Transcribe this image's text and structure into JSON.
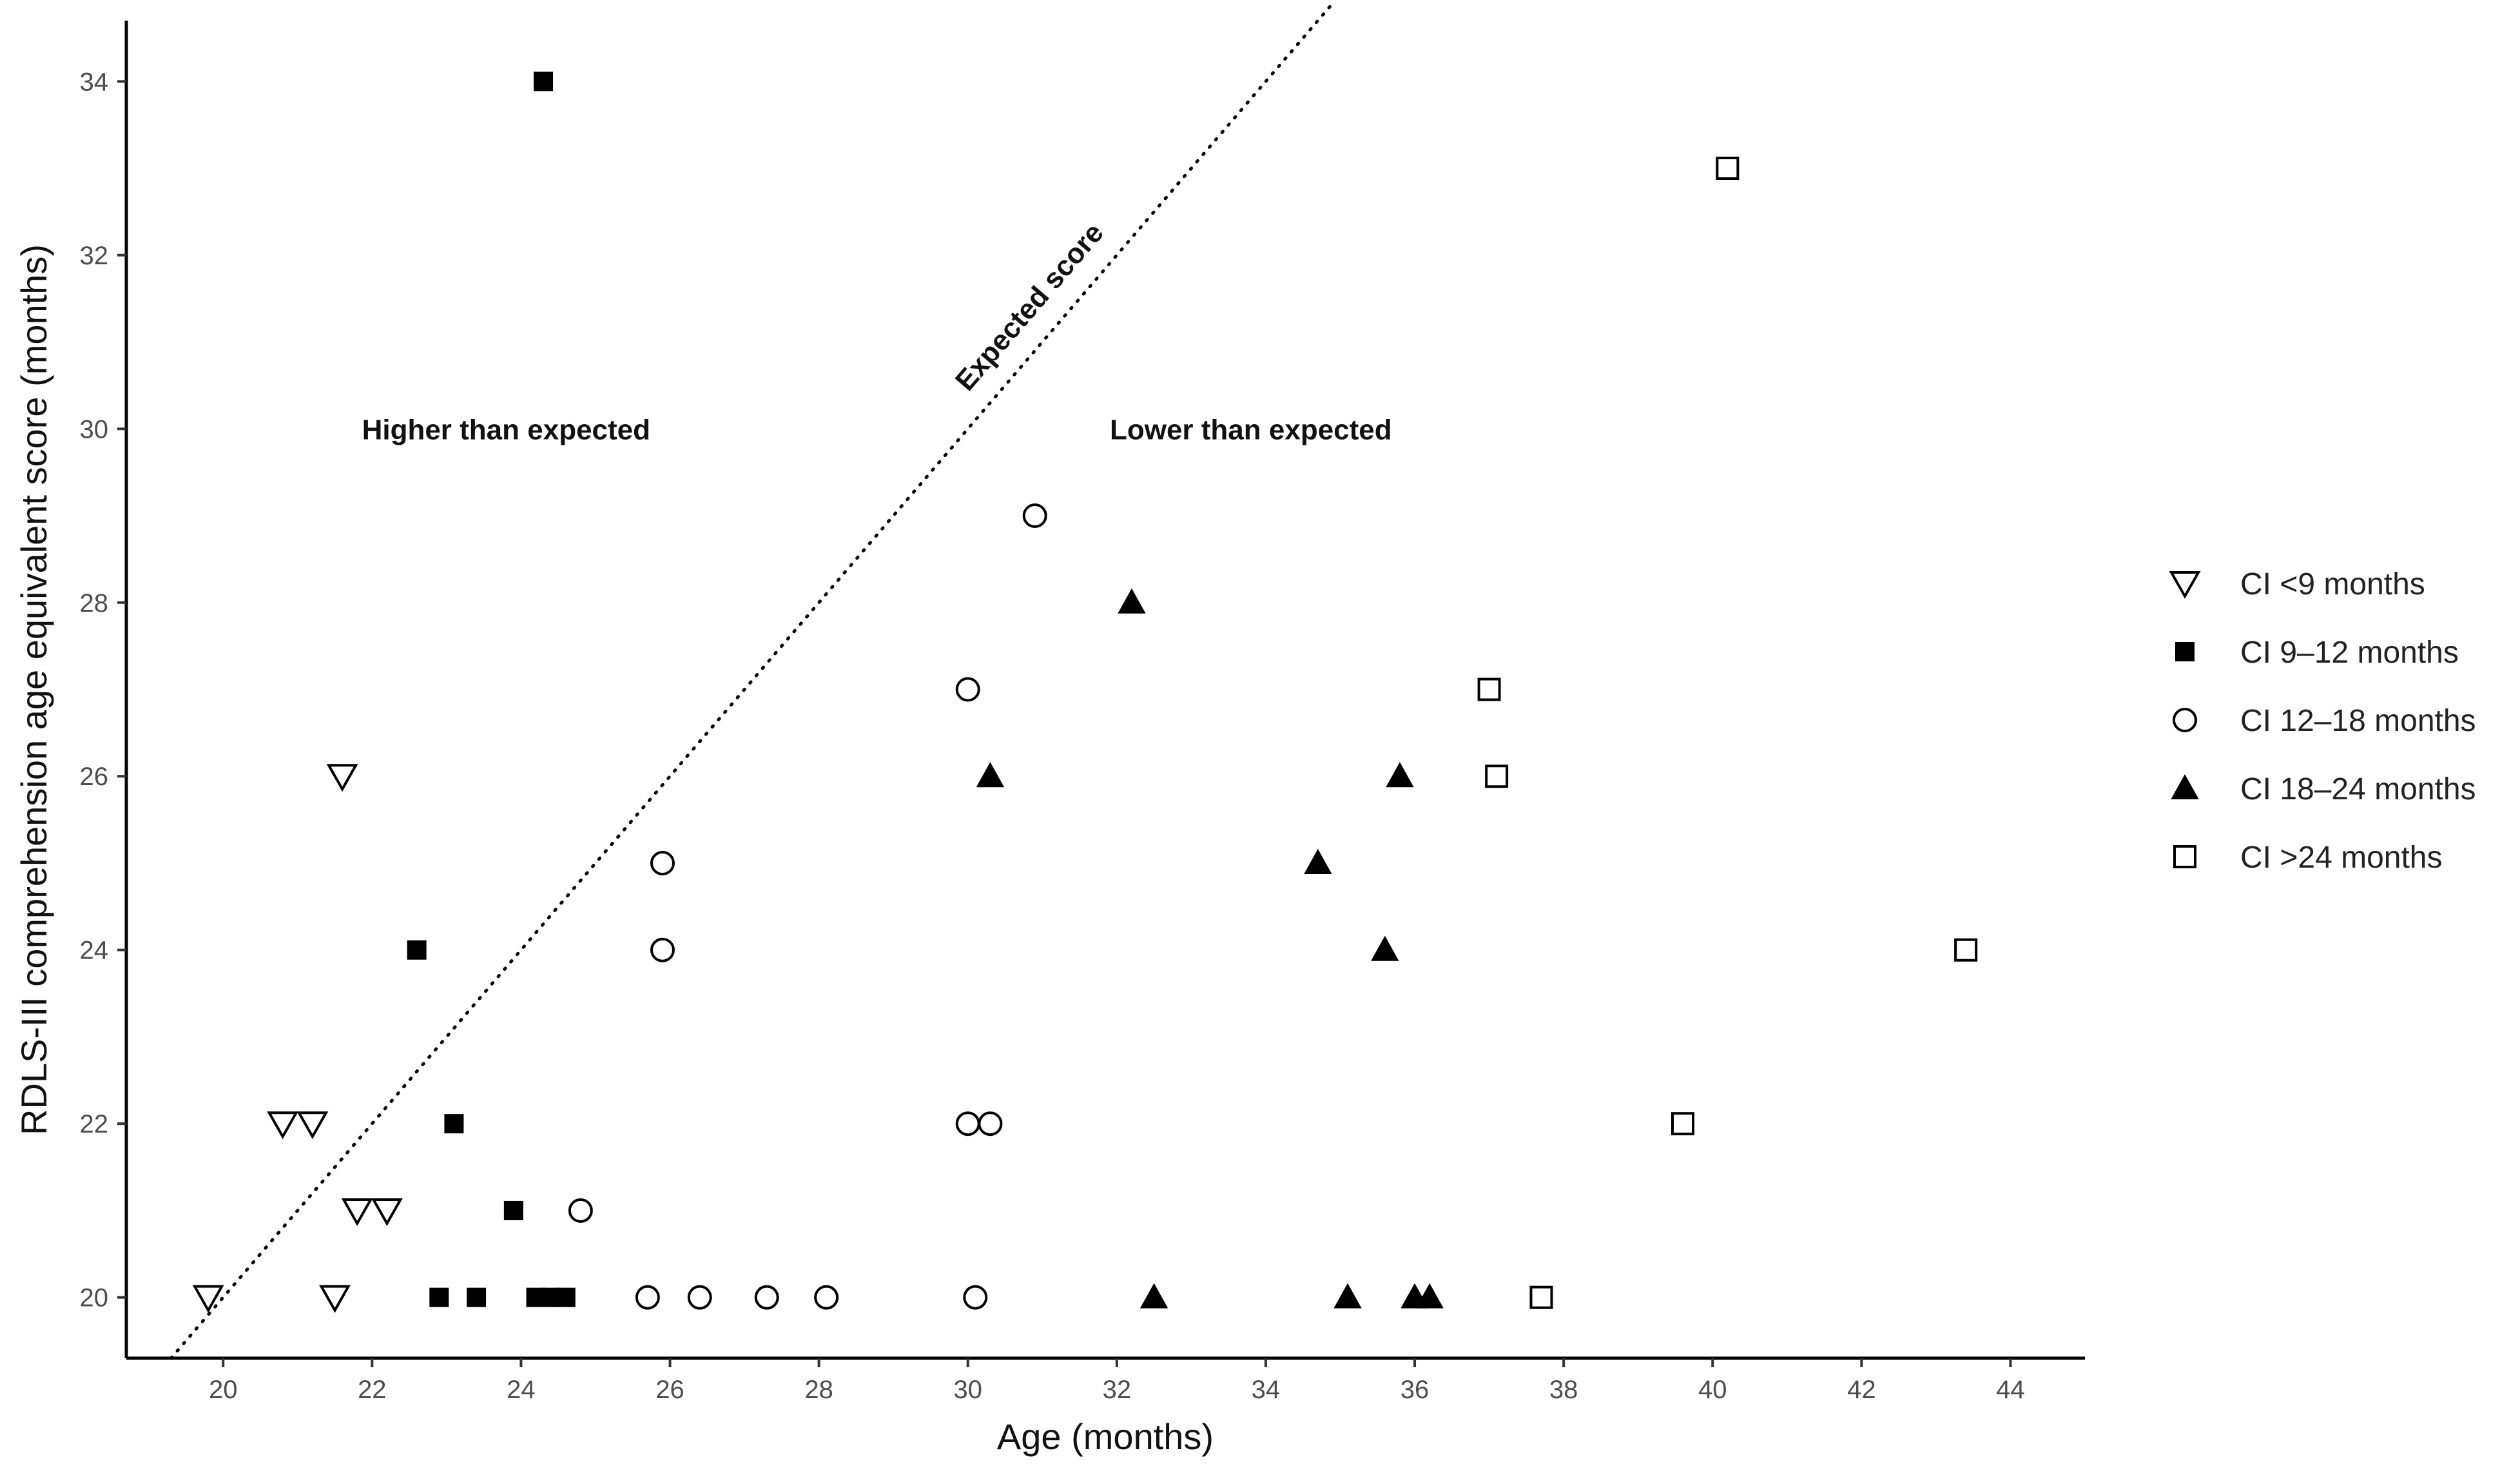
{
  "chart_data": {
    "type": "scatter",
    "title": "",
    "xlabel": "Age (months)",
    "ylabel": "RDLS-III comprehension age equivalent score (months)",
    "xlim": [
      18.7,
      45.0
    ],
    "ylim": [
      19.3,
      34.7
    ],
    "xticks": [
      20,
      22,
      24,
      26,
      28,
      30,
      32,
      34,
      36,
      38,
      40,
      42,
      44
    ],
    "yticks": [
      20,
      22,
      24,
      26,
      28,
      30,
      32,
      34
    ],
    "grid": false,
    "legend_position": "right",
    "reference_line": {
      "label": "Expected score",
      "slope": 1,
      "intercept": 0,
      "style": "dotted"
    },
    "annotations": [
      {
        "text": "Higher than expected",
        "x": 23.8,
        "y": 30
      },
      {
        "text": "Lower than expected",
        "x": 33.8,
        "y": 30
      }
    ],
    "series": [
      {
        "name": "CI <9 months",
        "marker": "triangle-down-open",
        "points": [
          [
            19.8,
            20
          ],
          [
            20.8,
            22
          ],
          [
            21.2,
            22
          ],
          [
            21.6,
            26
          ],
          [
            21.8,
            21
          ],
          [
            22.2,
            21
          ],
          [
            21.5,
            20
          ]
        ]
      },
      {
        "name": "CI 9–12 months",
        "marker": "square-filled",
        "points": [
          [
            24.3,
            34
          ],
          [
            22.6,
            24
          ],
          [
            23.1,
            22
          ],
          [
            23.9,
            21
          ],
          [
            22.9,
            20
          ],
          [
            23.4,
            20
          ],
          [
            24.2,
            20
          ],
          [
            24.4,
            20
          ],
          [
            24.6,
            20
          ]
        ]
      },
      {
        "name": "CI 12–18 months",
        "marker": "circle-open",
        "points": [
          [
            30.9,
            29
          ],
          [
            30.0,
            27
          ],
          [
            25.9,
            25
          ],
          [
            25.9,
            24
          ],
          [
            30.0,
            22
          ],
          [
            30.3,
            22
          ],
          [
            24.8,
            21
          ],
          [
            25.7,
            20
          ],
          [
            26.4,
            20
          ],
          [
            27.3,
            20
          ],
          [
            28.1,
            20
          ],
          [
            30.1,
            20
          ]
        ]
      },
      {
        "name": "CI 18–24 months",
        "marker": "triangle-up-filled",
        "points": [
          [
            32.2,
            28
          ],
          [
            30.3,
            26
          ],
          [
            35.8,
            26
          ],
          [
            34.7,
            25
          ],
          [
            35.6,
            24
          ],
          [
            32.5,
            20
          ],
          [
            35.1,
            20
          ],
          [
            36.0,
            20
          ],
          [
            36.2,
            20
          ]
        ]
      },
      {
        "name": "CI >24 months",
        "marker": "square-open",
        "points": [
          [
            40.2,
            33
          ],
          [
            37.0,
            27
          ],
          [
            37.1,
            26
          ],
          [
            43.4,
            24
          ],
          [
            39.6,
            22
          ],
          [
            37.7,
            20
          ]
        ]
      }
    ]
  }
}
